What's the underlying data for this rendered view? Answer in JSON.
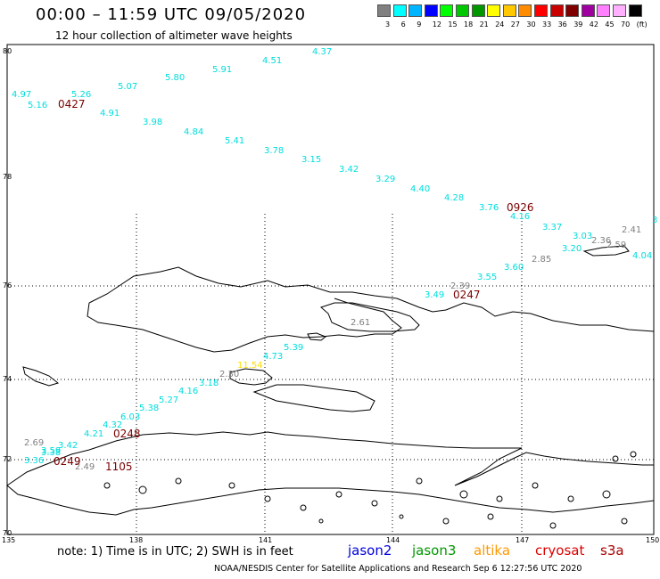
{
  "title": "00:00 – 11:59 UTC 09/05/2020",
  "subtitle": "12 hour collection of altimeter wave heights",
  "colorbar": {
    "colors": [
      "#808080",
      "#00ffff",
      "#00b4ff",
      "#0000ff",
      "#00ff00",
      "#00c800",
      "#009600",
      "#ffff00",
      "#ffc800",
      "#ff8c00",
      "#ff0000",
      "#c80000",
      "#800000",
      "#a000a0",
      "#ff80ff",
      "#ffb0ff",
      "#000000"
    ],
    "ticks": [
      "3",
      "6",
      "9",
      "12",
      "15",
      "18",
      "21",
      "24",
      "27",
      "30",
      "33",
      "36",
      "39",
      "42",
      "45",
      "70",
      "(ft)"
    ]
  },
  "axes": {
    "lat": [
      "80",
      "78",
      "76",
      "74",
      "72",
      "70"
    ],
    "lon": [
      "135",
      "138",
      "141",
      "144",
      "147",
      "150"
    ]
  },
  "note": "note:  1) Time is in UTC;  2) SWH is in feet",
  "satellites": [
    {
      "name": "jason2",
      "color": "#0000dd"
    },
    {
      "name": "jason3",
      "color": "#009900"
    },
    {
      "name": "altika",
      "color": "#ff9900"
    },
    {
      "name": "cryosat",
      "color": "#dd0000"
    },
    {
      "name": "s3a",
      "color": "#aa0000"
    }
  ],
  "footer": "NOAA/NESDIS Center for Satellite Applications and Research     Sep  6 12:27:56 UTC 2020",
  "measurements": [
    {
      "text": "4.37",
      "color": "#00dddd"
    },
    {
      "text": "4.51",
      "color": "#00dddd"
    },
    {
      "text": "5.91",
      "color": "#00dddd"
    },
    {
      "text": "5.80",
      "color": "#00dddd"
    },
    {
      "text": "5.07",
      "color": "#00dddd"
    },
    {
      "text": "5.26",
      "color": "#00dddd"
    },
    {
      "text": "4.97",
      "color": "#00dddd"
    },
    {
      "text": "5.16",
      "color": "#00dddd"
    },
    {
      "text": "4.91",
      "color": "#00dddd"
    },
    {
      "text": "3.98",
      "color": "#00dddd"
    },
    {
      "text": "4.84",
      "color": "#00dddd"
    },
    {
      "text": "5.41",
      "color": "#00dddd"
    },
    {
      "text": "3.78",
      "color": "#00dddd"
    },
    {
      "text": "3.15",
      "color": "#00dddd"
    },
    {
      "text": "3.42",
      "color": "#00dddd"
    },
    {
      "text": "3.29",
      "color": "#00dddd"
    },
    {
      "text": "4.40",
      "color": "#00dddd"
    },
    {
      "text": "4.28",
      "color": "#00dddd"
    },
    {
      "text": "3.76",
      "color": "#00dddd"
    },
    {
      "text": "4.16",
      "color": "#00dddd"
    },
    {
      "text": "3.37",
      "color": "#00dddd"
    },
    {
      "text": "3.03",
      "color": "#00dddd"
    },
    {
      "text": "3.20",
      "color": "#00dddd"
    },
    {
      "text": "2.41",
      "color": "#808080"
    },
    {
      "text": "2.36",
      "color": "#808080"
    },
    {
      "text": "2.59",
      "color": "#808080"
    },
    {
      "text": "4.04",
      "color": "#00dddd"
    },
    {
      "text": "3",
      "color": "#00dddd"
    },
    {
      "text": "2.85",
      "color": "#808080"
    },
    {
      "text": "3.60",
      "color": "#00dddd"
    },
    {
      "text": "3.55",
      "color": "#00dddd"
    },
    {
      "text": "2.39",
      "color": "#808080"
    },
    {
      "text": "3.49",
      "color": "#00dddd"
    },
    {
      "text": "2.61",
      "color": "#808080"
    },
    {
      "text": "5.39",
      "color": "#00dddd"
    },
    {
      "text": "4.73",
      "color": "#00dddd"
    },
    {
      "text": "11.54",
      "color": "#ffdd00"
    },
    {
      "text": "2.30",
      "color": "#808080"
    },
    {
      "text": "3.18",
      "color": "#00dddd"
    },
    {
      "text": "4.16",
      "color": "#00dddd"
    },
    {
      "text": "5.27",
      "color": "#00dddd"
    },
    {
      "text": "5.38",
      "color": "#00dddd"
    },
    {
      "text": "6.03",
      "color": "#00dddd"
    },
    {
      "text": "4.32",
      "color": "#00dddd"
    },
    {
      "text": "4.21",
      "color": "#00dddd"
    },
    {
      "text": "2.69",
      "color": "#808080"
    },
    {
      "text": "3.42",
      "color": "#00dddd"
    },
    {
      "text": "3.59",
      "color": "#00dddd"
    },
    {
      "text": "3.38",
      "color": "#00dddd"
    },
    {
      "text": "3.36",
      "color": "#00dddd"
    },
    {
      "text": "2.49",
      "color": "#808080"
    }
  ],
  "time_labels": [
    "0427",
    "0926",
    "0247",
    "0248",
    "0249",
    "1105"
  ]
}
